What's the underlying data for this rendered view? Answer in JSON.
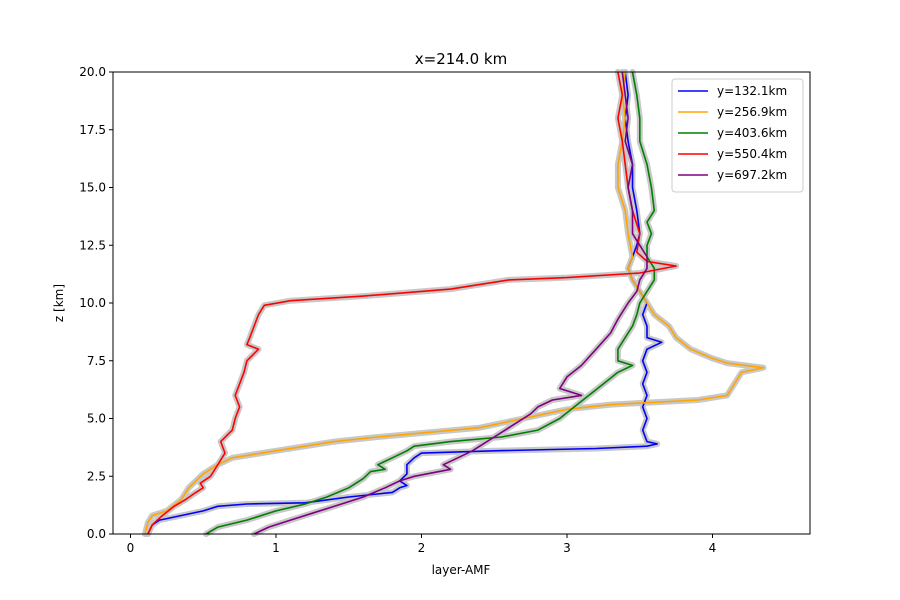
{
  "chart_data": {
    "type": "line",
    "title": "x=214.0 km",
    "xlabel": "layer-AMF",
    "ylabel": "z [km]",
    "xlim": [
      -0.12,
      4.67
    ],
    "ylim": [
      0.0,
      20.0
    ],
    "xticks": [
      0,
      1,
      2,
      3,
      4
    ],
    "xtick_labels": [
      "0",
      "1",
      "2",
      "3",
      "4"
    ],
    "yticks": [
      0.0,
      2.5,
      5.0,
      7.5,
      10.0,
      12.5,
      15.0,
      17.5,
      20.0
    ],
    "ytick_labels": [
      "0.0",
      "2.5",
      "5.0",
      "7.5",
      "10.0",
      "12.5",
      "15.0",
      "17.5",
      "20.0"
    ],
    "grid": false,
    "legend_position": "top-right",
    "uncertainty_band_color": "#c8c8c8",
    "series": [
      {
        "name": "y=132.1km",
        "color": "#0000ff",
        "points": [
          [
            0.12,
            0.0
          ],
          [
            0.15,
            0.4
          ],
          [
            0.2,
            0.6
          ],
          [
            0.35,
            0.8
          ],
          [
            0.5,
            1.0
          ],
          [
            0.6,
            1.2
          ],
          [
            0.8,
            1.3
          ],
          [
            1.2,
            1.35
          ],
          [
            1.5,
            1.6
          ],
          [
            1.8,
            1.8
          ],
          [
            1.85,
            2.0
          ],
          [
            1.9,
            2.1
          ],
          [
            1.85,
            2.3
          ],
          [
            1.9,
            2.6
          ],
          [
            1.9,
            3.0
          ],
          [
            1.95,
            3.3
          ],
          [
            2.0,
            3.5
          ],
          [
            2.5,
            3.6
          ],
          [
            3.2,
            3.7
          ],
          [
            3.55,
            3.8
          ],
          [
            3.62,
            3.9
          ],
          [
            3.55,
            4.0
          ],
          [
            3.52,
            4.5
          ],
          [
            3.55,
            5.0
          ],
          [
            3.52,
            5.5
          ],
          [
            3.55,
            6.0
          ],
          [
            3.52,
            6.5
          ],
          [
            3.55,
            7.0
          ],
          [
            3.52,
            7.5
          ],
          [
            3.55,
            8.0
          ],
          [
            3.65,
            8.3
          ],
          [
            3.55,
            8.5
          ],
          [
            3.55,
            9.0
          ],
          [
            3.52,
            9.5
          ],
          [
            3.55,
            10.0
          ],
          [
            3.5,
            10.5
          ],
          [
            3.45,
            11.0
          ],
          [
            3.42,
            11.5
          ],
          [
            3.45,
            12.0
          ],
          [
            3.48,
            12.5
          ],
          [
            3.5,
            13.0
          ],
          [
            3.48,
            14.0
          ],
          [
            3.45,
            15.0
          ],
          [
            3.45,
            16.0
          ],
          [
            3.42,
            17.0
          ],
          [
            3.4,
            18.0
          ],
          [
            3.42,
            19.0
          ],
          [
            3.4,
            20.0
          ]
        ]
      },
      {
        "name": "y=256.9km",
        "color": "#ffa500",
        "points": [
          [
            0.1,
            0.0
          ],
          [
            0.12,
            0.5
          ],
          [
            0.15,
            0.8
          ],
          [
            0.25,
            1.0
          ],
          [
            0.35,
            1.5
          ],
          [
            0.4,
            2.0
          ],
          [
            0.5,
            2.6
          ],
          [
            0.6,
            3.0
          ],
          [
            0.7,
            3.3
          ],
          [
            1.0,
            3.6
          ],
          [
            1.4,
            4.0
          ],
          [
            1.7,
            4.2
          ],
          [
            2.4,
            4.6
          ],
          [
            2.7,
            5.0
          ],
          [
            3.0,
            5.4
          ],
          [
            3.3,
            5.6
          ],
          [
            3.9,
            5.8
          ],
          [
            4.1,
            6.0
          ],
          [
            4.15,
            6.5
          ],
          [
            4.2,
            7.0
          ],
          [
            4.35,
            7.2
          ],
          [
            4.1,
            7.4
          ],
          [
            4.0,
            7.6
          ],
          [
            3.85,
            8.0
          ],
          [
            3.75,
            8.5
          ],
          [
            3.7,
            9.0
          ],
          [
            3.6,
            9.5
          ],
          [
            3.55,
            10.0
          ],
          [
            3.5,
            10.5
          ],
          [
            3.45,
            11.0
          ],
          [
            3.42,
            11.5
          ],
          [
            3.45,
            12.0
          ],
          [
            3.42,
            13.0
          ],
          [
            3.4,
            14.0
          ],
          [
            3.35,
            15.0
          ],
          [
            3.35,
            16.0
          ],
          [
            3.38,
            17.0
          ],
          [
            3.4,
            18.0
          ],
          [
            3.38,
            19.0
          ],
          [
            3.4,
            20.0
          ]
        ]
      },
      {
        "name": "y=403.6km",
        "color": "#008000",
        "points": [
          [
            0.52,
            0.0
          ],
          [
            0.6,
            0.3
          ],
          [
            0.8,
            0.6
          ],
          [
            1.0,
            1.0
          ],
          [
            1.2,
            1.3
          ],
          [
            1.35,
            1.6
          ],
          [
            1.5,
            2.0
          ],
          [
            1.6,
            2.4
          ],
          [
            1.65,
            2.7
          ],
          [
            1.75,
            2.8
          ],
          [
            1.7,
            3.0
          ],
          [
            1.8,
            3.3
          ],
          [
            1.9,
            3.6
          ],
          [
            1.95,
            3.8
          ],
          [
            2.2,
            4.0
          ],
          [
            2.55,
            4.2
          ],
          [
            2.8,
            4.5
          ],
          [
            2.95,
            5.0
          ],
          [
            3.05,
            5.5
          ],
          [
            3.15,
            6.0
          ],
          [
            3.25,
            6.5
          ],
          [
            3.35,
            7.0
          ],
          [
            3.45,
            7.3
          ],
          [
            3.35,
            7.5
          ],
          [
            3.35,
            8.0
          ],
          [
            3.4,
            8.5
          ],
          [
            3.45,
            9.0
          ],
          [
            3.48,
            9.5
          ],
          [
            3.5,
            10.0
          ],
          [
            3.55,
            10.5
          ],
          [
            3.6,
            11.0
          ],
          [
            3.6,
            11.5
          ],
          [
            3.55,
            12.0
          ],
          [
            3.55,
            12.5
          ],
          [
            3.58,
            13.0
          ],
          [
            3.55,
            13.5
          ],
          [
            3.6,
            14.0
          ],
          [
            3.58,
            15.0
          ],
          [
            3.55,
            16.0
          ],
          [
            3.5,
            17.0
          ],
          [
            3.5,
            18.0
          ],
          [
            3.48,
            19.0
          ],
          [
            3.45,
            20.0
          ]
        ]
      },
      {
        "name": "y=550.4km",
        "color": "#ff0000",
        "points": [
          [
            0.12,
            0.0
          ],
          [
            0.15,
            0.4
          ],
          [
            0.22,
            0.8
          ],
          [
            0.3,
            1.2
          ],
          [
            0.38,
            1.5
          ],
          [
            0.45,
            1.8
          ],
          [
            0.5,
            2.0
          ],
          [
            0.48,
            2.2
          ],
          [
            0.55,
            2.5
          ],
          [
            0.6,
            3.0
          ],
          [
            0.65,
            3.5
          ],
          [
            0.62,
            4.0
          ],
          [
            0.7,
            4.5
          ],
          [
            0.72,
            5.0
          ],
          [
            0.75,
            5.5
          ],
          [
            0.72,
            6.0
          ],
          [
            0.75,
            6.5
          ],
          [
            0.78,
            7.0
          ],
          [
            0.8,
            7.5
          ],
          [
            0.88,
            8.0
          ],
          [
            0.8,
            8.2
          ],
          [
            0.82,
            8.5
          ],
          [
            0.85,
            9.0
          ],
          [
            0.88,
            9.5
          ],
          [
            0.92,
            9.9
          ],
          [
            1.1,
            10.1
          ],
          [
            1.6,
            10.3
          ],
          [
            2.2,
            10.6
          ],
          [
            2.6,
            11.0
          ],
          [
            3.0,
            11.1
          ],
          [
            3.5,
            11.3
          ],
          [
            3.75,
            11.6
          ],
          [
            3.55,
            11.8
          ],
          [
            3.48,
            12.2
          ],
          [
            3.5,
            13.0
          ],
          [
            3.45,
            14.0
          ],
          [
            3.42,
            15.0
          ],
          [
            3.4,
            16.0
          ],
          [
            3.38,
            17.0
          ],
          [
            3.35,
            18.0
          ],
          [
            3.38,
            19.0
          ],
          [
            3.35,
            20.0
          ]
        ]
      },
      {
        "name": "y=697.2km",
        "color": "#800080",
        "points": [
          [
            0.85,
            0.0
          ],
          [
            0.95,
            0.3
          ],
          [
            1.1,
            0.6
          ],
          [
            1.25,
            0.9
          ],
          [
            1.45,
            1.3
          ],
          [
            1.6,
            1.6
          ],
          [
            1.75,
            2.0
          ],
          [
            1.85,
            2.3
          ],
          [
            1.95,
            2.5
          ],
          [
            2.2,
            2.8
          ],
          [
            2.15,
            3.0
          ],
          [
            2.25,
            3.3
          ],
          [
            2.35,
            3.6
          ],
          [
            2.45,
            4.0
          ],
          [
            2.55,
            4.4
          ],
          [
            2.65,
            4.8
          ],
          [
            2.75,
            5.2
          ],
          [
            2.8,
            5.5
          ],
          [
            2.9,
            5.8
          ],
          [
            3.1,
            6.0
          ],
          [
            2.95,
            6.3
          ],
          [
            3.0,
            6.8
          ],
          [
            3.1,
            7.3
          ],
          [
            3.2,
            8.0
          ],
          [
            3.3,
            8.7
          ],
          [
            3.35,
            9.3
          ],
          [
            3.42,
            10.0
          ],
          [
            3.48,
            10.5
          ],
          [
            3.5,
            11.0
          ],
          [
            3.55,
            11.5
          ],
          [
            3.55,
            12.0
          ],
          [
            3.5,
            12.5
          ],
          [
            3.45,
            13.0
          ],
          [
            3.45,
            14.0
          ],
          [
            3.42,
            15.0
          ],
          [
            3.45,
            16.0
          ],
          [
            3.4,
            17.0
          ],
          [
            3.42,
            18.0
          ],
          [
            3.4,
            19.0
          ],
          [
            3.38,
            20.0
          ]
        ]
      }
    ]
  }
}
